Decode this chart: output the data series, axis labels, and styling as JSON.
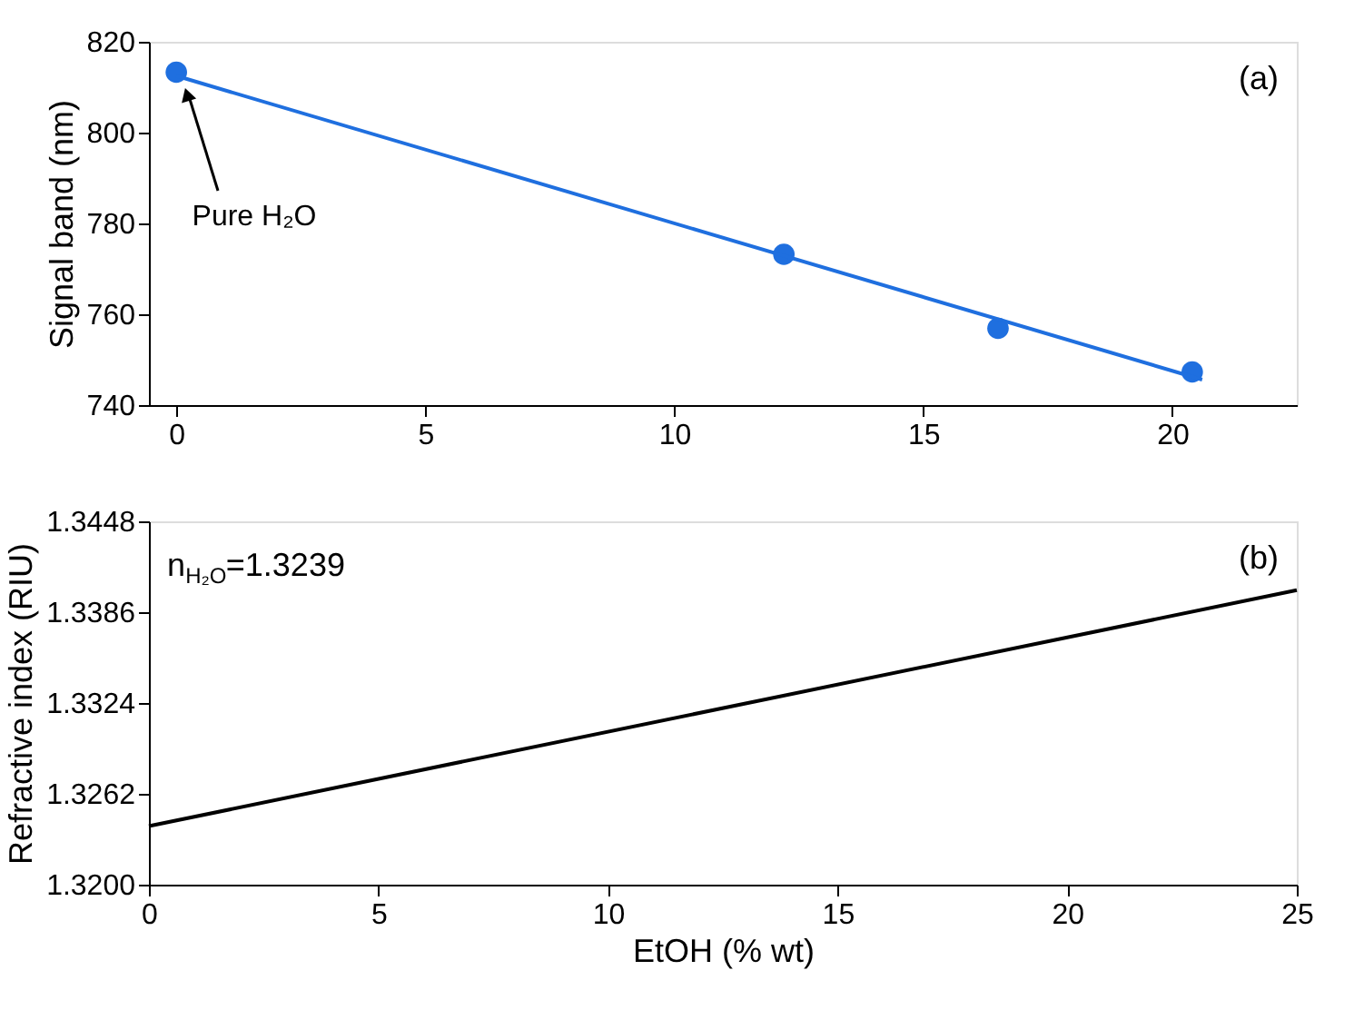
{
  "chart_data": [
    {
      "type": "scatter",
      "ylabel": "Signal band (nm)",
      "xlim": [
        -0.55,
        22.5
      ],
      "xticks": [
        0,
        5,
        10,
        15,
        20
      ],
      "ylim": [
        740,
        820
      ],
      "yticks": [
        740,
        760,
        780,
        800,
        820
      ],
      "grid": false,
      "series": [
        {
          "color": "#1f6fdf",
          "marker": "circle",
          "x": [
            0,
            12.2,
            16.5,
            20.4
          ],
          "values": [
            813.3,
            773.2,
            756.9,
            747.3
          ]
        },
        {
          "type": "line",
          "color": "#1f6fdf",
          "line_style": "solid",
          "x": [
            0,
            20.6
          ],
          "values": [
            812.5,
            745.6
          ]
        }
      ],
      "annotations": [
        "(a)",
        "Pure H₂O"
      ]
    },
    {
      "type": "line",
      "xlabel": "EtOH (% wt)",
      "ylabel": "Refractive index (RIU)",
      "xlim": [
        0,
        25
      ],
      "xticks": [
        0,
        5,
        10,
        15,
        20,
        25
      ],
      "ylim": [
        1.32,
        1.3448
      ],
      "yticks": [
        {
          "value": 1.32,
          "label": "1.3200"
        },
        {
          "value": 1.3262,
          "label": "1.3262"
        },
        {
          "value": 1.3324,
          "label": "1.3324"
        },
        {
          "value": 1.3386,
          "label": "1.3386"
        },
        {
          "value": 1.3448,
          "label": "1.3448"
        }
      ],
      "grid": false,
      "series": [
        {
          "color": "#000000",
          "line_style": "solid",
          "x": [
            0,
            25
          ],
          "values": [
            1.324,
            1.3401
          ]
        }
      ],
      "annotations": [
        "(b)",
        "n$_{H₂O}$=1.3239"
      ]
    }
  ]
}
